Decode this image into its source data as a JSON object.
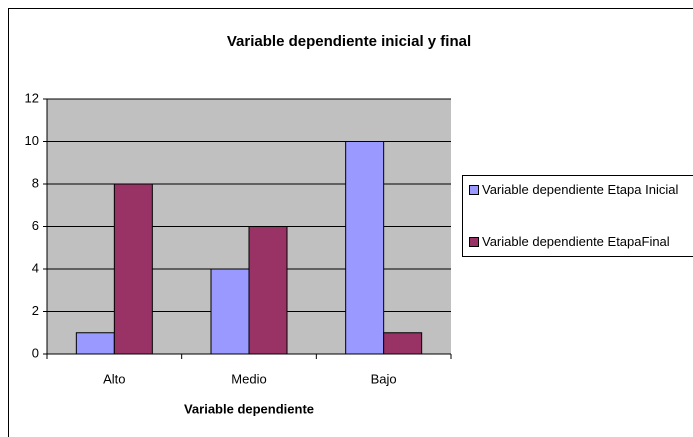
{
  "chart_data": {
    "type": "bar",
    "title": "Variable dependiente inicial y final",
    "x_label": "Variable dependiente",
    "categories": [
      "Alto",
      "Medio",
      "Bajo"
    ],
    "series": [
      {
        "name": "Variable dependiente Etapa Inicial",
        "color": "#9999ff",
        "values": [
          1,
          4,
          10
        ]
      },
      {
        "name": "Variable dependiente EtapaFinal",
        "color": "#993366",
        "values": [
          8,
          6,
          1
        ]
      }
    ],
    "ylim": [
      0,
      12
    ],
    "yticks": [
      0,
      2,
      4,
      6,
      8,
      10,
      12
    ],
    "grid": true,
    "legend": "right"
  }
}
